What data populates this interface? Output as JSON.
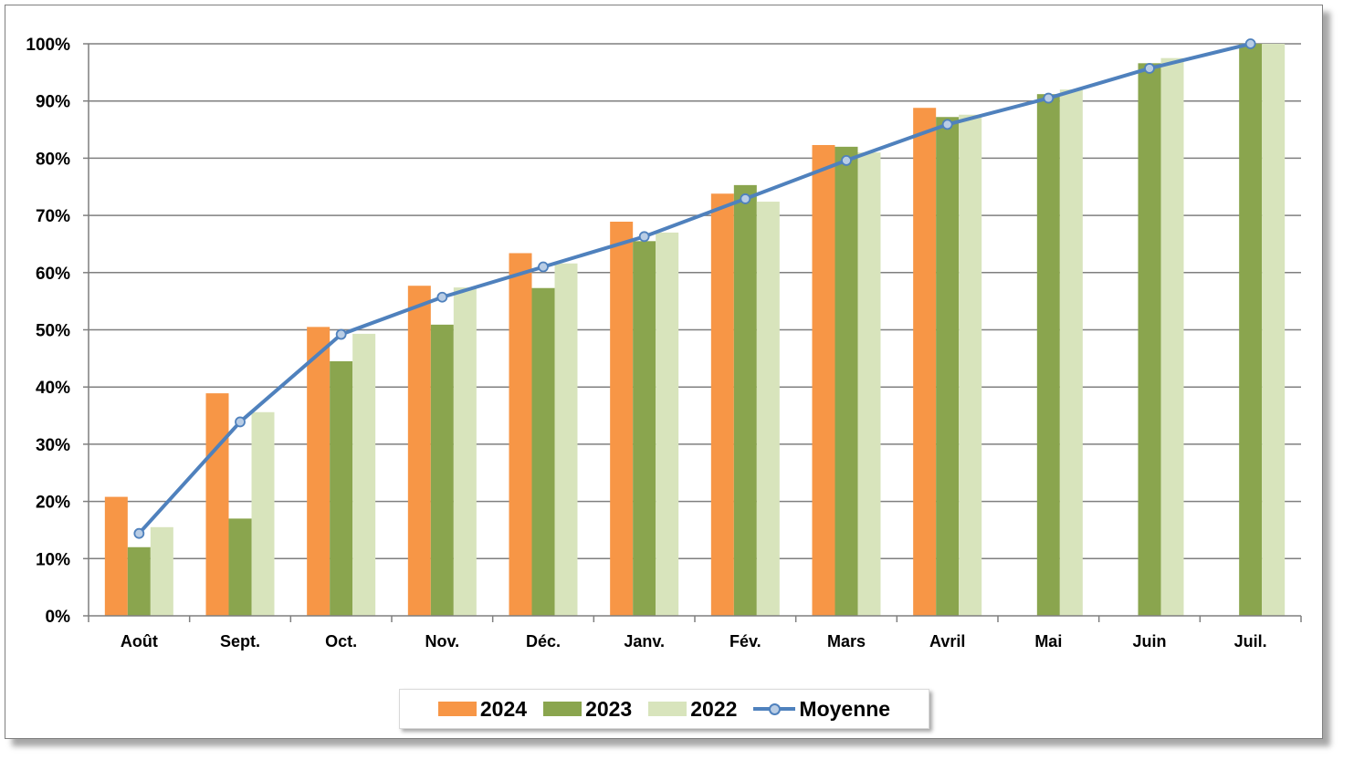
{
  "chart_data": {
    "type": "bar",
    "title": "",
    "xlabel": "",
    "ylabel": "",
    "ylim": [
      0,
      100
    ],
    "yticks": [
      "0%",
      "10%",
      "20%",
      "30%",
      "40%",
      "50%",
      "60%",
      "70%",
      "80%",
      "90%",
      "100%"
    ],
    "grid": true,
    "legend_position": "bottom",
    "categories": [
      "Août",
      "Sept.",
      "Oct.",
      "Nov.",
      "Déc.",
      "Janv.",
      "Fév.",
      "Mars",
      "Avril",
      "Mai",
      "Juin",
      "Juil."
    ],
    "series": [
      {
        "name": "2024",
        "type": "bar",
        "color": "#f79646",
        "values": [
          20.8,
          38.9,
          50.5,
          57.7,
          63.4,
          68.9,
          73.8,
          82.3,
          88.8,
          null,
          null,
          null
        ]
      },
      {
        "name": "2023",
        "type": "bar",
        "color": "#8aa54e",
        "values": [
          12.0,
          17.0,
          44.5,
          50.9,
          57.3,
          65.5,
          75.3,
          82.0,
          87.2,
          91.2,
          96.6,
          100.0
        ]
      },
      {
        "name": "2022",
        "type": "bar",
        "color": "#d8e4bc",
        "values": [
          15.5,
          35.6,
          49.3,
          57.4,
          61.6,
          67.0,
          72.4,
          81.0,
          87.6,
          92.0,
          97.5,
          100.0
        ]
      },
      {
        "name": "Moyenne",
        "type": "line",
        "color": "#4f81bd",
        "marker_fill": "#b9cde5",
        "values": [
          14.4,
          33.9,
          49.2,
          55.7,
          61.0,
          66.3,
          72.9,
          79.6,
          85.9,
          90.5,
          95.7,
          100.0
        ]
      }
    ]
  }
}
